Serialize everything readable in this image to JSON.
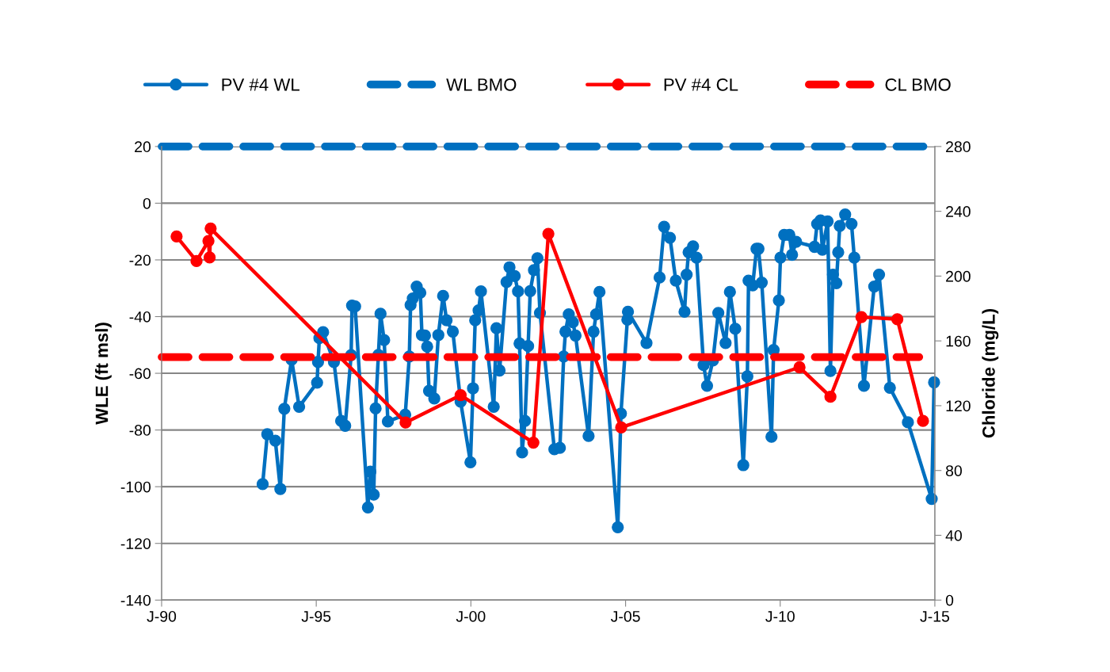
{
  "chart_data": {
    "type": "line",
    "ylabel": "WLE (ft msl)",
    "y2label": "Chloride (mg/L)",
    "xlim": [
      "1990-01-01",
      "2015-01-01"
    ],
    "xticks": [
      {
        "value": "1990-01-01",
        "label": "J-90"
      },
      {
        "value": "1995-01-01",
        "label": "J-95"
      },
      {
        "value": "2000-01-01",
        "label": "J-00"
      },
      {
        "value": "2005-01-01",
        "label": "J-05"
      },
      {
        "value": "2010-01-01",
        "label": "J-10"
      },
      {
        "value": "2015-01-01",
        "label": "J-15"
      }
    ],
    "ylim": [
      -140,
      20
    ],
    "yticks": [
      -140,
      -120,
      -100,
      -80,
      -60,
      -40,
      -20,
      0,
      20
    ],
    "y2lim": [
      0,
      280
    ],
    "y2ticks": [
      0,
      40,
      80,
      120,
      160,
      200,
      240,
      280
    ],
    "grid": "y",
    "legend": "top",
    "series": [
      {
        "name": "PV #4 WL",
        "color": "#0070c0",
        "marker": "circle",
        "line_style": "solid",
        "x": [
          "1993-04-08",
          "1993-06-02",
          "1993-09-05",
          "1993-11-03",
          "1993-12-20",
          "1994-03-16",
          "1994-06-13",
          "1995-01-11",
          "1995-01-22",
          "1995-02-07",
          "1995-03-23",
          "1995-07-29",
          "1995-10-22",
          "1995-12-09",
          "1996-02-17",
          "1996-02-28",
          "1996-04-04",
          "1996-09-02",
          "1996-10-01",
          "1996-11-10",
          "1996-12-02",
          "1997-01-04",
          "1997-01-29",
          "1997-03-13",
          "1997-04-26",
          "1997-11-17",
          "1998-01-04",
          "1998-01-19",
          "1998-02-14",
          "1998-04-01",
          "1998-05-14",
          "1998-06-02",
          "1998-07-08",
          "1998-08-03",
          "1998-08-25",
          "1998-10-26",
          "1998-12-13",
          "1999-02-07",
          "1999-03-20",
          "1999-06-02",
          "1999-09-02",
          "1999-12-27",
          "2000-01-26",
          "2000-02-21",
          "2000-04-01",
          "2000-04-29",
          "2000-09-27",
          "2000-10-29",
          "2000-12-05",
          "2001-02-25",
          "2001-04-01",
          "2001-06-02",
          "2001-07-11",
          "2001-07-29",
          "2001-08-28",
          "2001-10-01",
          "2001-11-07",
          "2001-12-02",
          "2002-01-15",
          "2002-02-25",
          "2002-03-27",
          "2002-09-13",
          "2002-11-17",
          "2003-01-01",
          "2003-01-22",
          "2003-03-02",
          "2003-04-19",
          "2003-05-21",
          "2003-10-22",
          "2003-12-20",
          "2004-01-19",
          "2004-02-28",
          "2004-10-01",
          "2004-11-07",
          "2005-01-22",
          "2005-01-29",
          "2005-09-05",
          "2006-02-07",
          "2006-04-01",
          "2006-06-09",
          "2006-08-17",
          "2006-11-28",
          "2006-12-23",
          "2007-01-15",
          "2007-03-09",
          "2007-04-19",
          "2007-07-11",
          "2007-08-21",
          "2007-10-29",
          "2008-01-01",
          "2008-03-27",
          "2008-05-17",
          "2008-07-19",
          "2008-10-22",
          "2008-12-09",
          "2008-12-23",
          "2009-02-10",
          "2009-03-27",
          "2009-04-19",
          "2009-05-28",
          "2009-09-20",
          "2009-10-15",
          "2009-12-16",
          "2010-01-04",
          "2010-02-17",
          "2010-04-19",
          "2010-05-21",
          "2010-07-08",
          "2011-02-10",
          "2011-03-13",
          "2011-04-22",
          "2011-05-14",
          "2011-07-15",
          "2011-08-17",
          "2011-09-16",
          "2011-10-26",
          "2011-11-17",
          "2011-12-05",
          "2012-02-07",
          "2012-04-22",
          "2012-05-25",
          "2012-09-16",
          "2013-01-15",
          "2013-03-13",
          "2013-07-19",
          "2014-02-17",
          "2014-11-25",
          "2014-12-23"
        ],
        "values": [
          -99.1,
          -81.5,
          -83.8,
          -100.8,
          -72.5,
          -55.2,
          -71.8,
          -63.3,
          -56.0,
          -47.6,
          -45.5,
          -56.0,
          -76.8,
          -78.5,
          -53.6,
          -36.1,
          -36.4,
          -107.3,
          -94.7,
          -102.8,
          -72.4,
          -53.5,
          -39.0,
          -48.3,
          -77.0,
          -74.6,
          -54.1,
          -35.9,
          -33.6,
          -29.4,
          -31.6,
          -46.5,
          -46.7,
          -50.6,
          -66.2,
          -68.9,
          -46.5,
          -32.7,
          -41.3,
          -45.3,
          -70.0,
          -91.4,
          -65.3,
          -41.3,
          -37.8,
          -31.1,
          -71.8,
          -44.1,
          -59.0,
          -27.8,
          -22.6,
          -25.7,
          -31.1,
          -49.5,
          -87.9,
          -76.8,
          -50.4,
          -31.0,
          -23.6,
          -19.4,
          -38.7,
          -86.8,
          -86.3,
          -54.1,
          -45.3,
          -39.2,
          -42.0,
          -46.7,
          -82.1,
          -45.3,
          -39.2,
          -31.3,
          -114.3,
          -74.2,
          -41.1,
          -38.3,
          -49.3,
          -26.2,
          -8.3,
          -12.2,
          -27.3,
          -38.3,
          -25.2,
          -17.3,
          -15.2,
          -19.2,
          -57.1,
          -64.4,
          -55.5,
          -38.7,
          -49.3,
          -31.3,
          -44.3,
          -92.4,
          -61.1,
          -27.3,
          -29.0,
          -16.1,
          -16.1,
          -28.0,
          -82.4,
          -51.8,
          -34.3,
          -19.2,
          -11.2,
          -11.2,
          -18.2,
          -13.6,
          -15.4,
          -7.3,
          -6.1,
          -16.4,
          -6.4,
          -59.2,
          -25.2,
          -28.2,
          -17.3,
          -8.0,
          -4.0,
          -7.3,
          -19.2,
          -64.4,
          -29.4,
          -25.2,
          -65.1,
          -77.3,
          -104.3,
          -63.2
        ]
      },
      {
        "name": "WL BMO",
        "color": "#0070c0",
        "marker": "none",
        "line_style": "dashed",
        "x": [
          "1990-01-01",
          "2014-10-15"
        ],
        "values": [
          20,
          20
        ]
      },
      {
        "name": "PV #4 CL",
        "color": "#ff0000",
        "marker": "circle",
        "line_style": "solid",
        "axis": "y2",
        "x": [
          "1990-06-27",
          "1991-02-17",
          "1991-07-08",
          "1991-07-22",
          "1991-08-03",
          "1997-11-21",
          "1999-09-02",
          "2002-01-08",
          "2002-07-04",
          "2004-11-10",
          "2010-08-17",
          "2011-08-17",
          "2012-08-17",
          "2013-10-15",
          "2014-08-14"
        ],
        "values": [
          224.5,
          209.3,
          221.7,
          211.5,
          229.4,
          109.6,
          126.5,
          97.2,
          226.1,
          106.6,
          143.7,
          125.5,
          174.7,
          173.4,
          110.6
        ]
      },
      {
        "name": "CL BMO",
        "color": "#ff0000",
        "marker": "none",
        "line_style": "dashed",
        "axis": "y2",
        "x": [
          "1990-01-01",
          "2014-07-01"
        ],
        "values": [
          150,
          150
        ]
      }
    ]
  }
}
